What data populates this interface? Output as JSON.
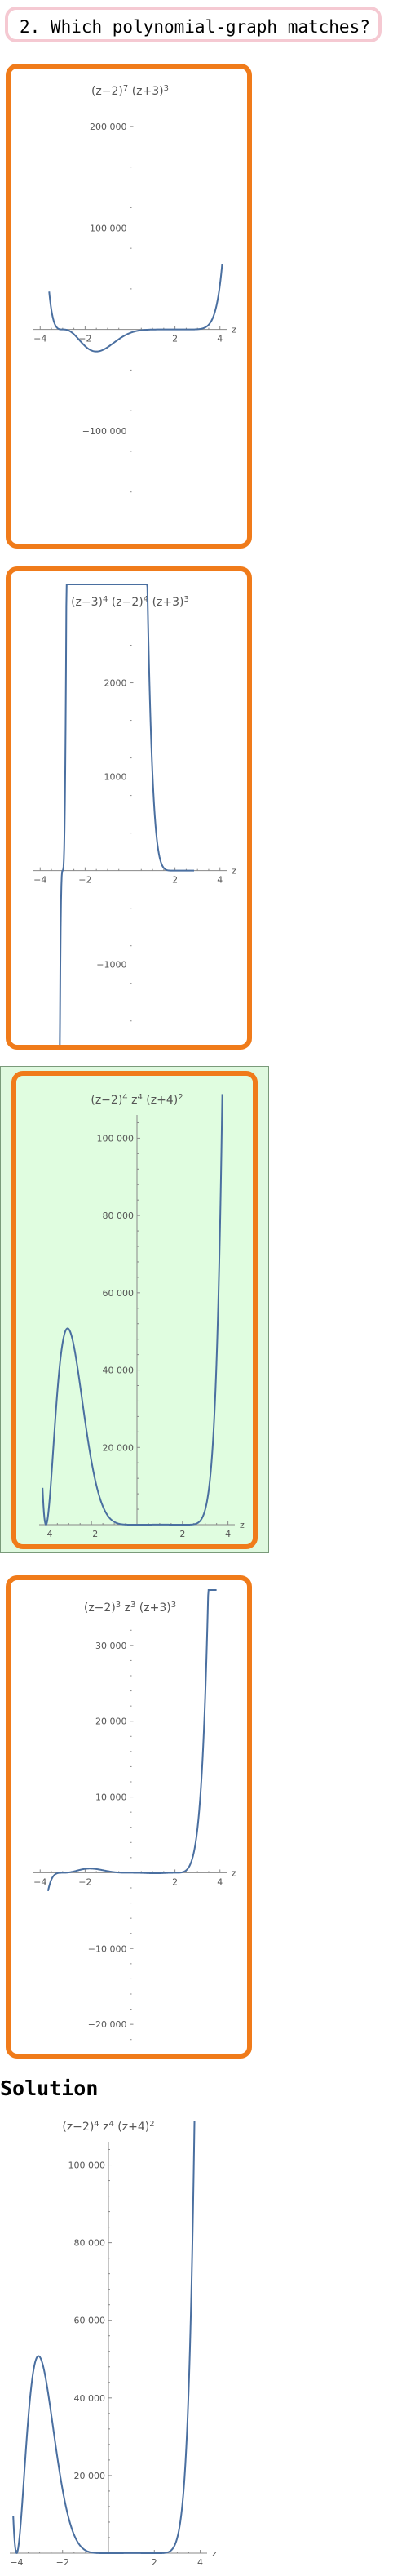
{
  "question": {
    "text": "2. Which polynomial-graph matches?"
  },
  "choices": [
    {
      "id": "a",
      "selected": false,
      "chart_data": {
        "type": "line",
        "title": "(z−2)^7 (z+3)^3",
        "xlabel": "z",
        "xlim": [
          -4.3,
          4.3
        ],
        "ylim": [
          -190000,
          220000
        ],
        "x_ticks": [
          -4,
          -2,
          2,
          4
        ],
        "y_ticks": [
          -100000,
          100000,
          200000
        ],
        "y_tick_labels": [
          "−100 000",
          "100 000",
          "200 000"
        ],
        "grid": false,
        "series": [
          {
            "expression": "(z-2)^7 (z+3)^3",
            "x_range": [
              -3.6,
              4.1
            ]
          }
        ]
      }
    },
    {
      "id": "b",
      "selected": false,
      "chart_data": {
        "type": "line",
        "title": "(z−3)^4 (z−2)^4 (z+3)^3",
        "xlabel": "z",
        "xlim": [
          -4.3,
          4.3
        ],
        "ylim": [
          -1750,
          2700
        ],
        "x_ticks": [
          -4,
          -2,
          2,
          4
        ],
        "y_ticks": [
          -1000,
          1000,
          2000
        ],
        "y_tick_labels": [
          "−1000",
          "1000",
          "2000"
        ],
        "grid": false,
        "series": [
          {
            "expression": "(z-3)^4 (z-2)^4 (z+3)^3",
            "x_range": [
              -3.45,
              2.85
            ]
          }
        ]
      }
    },
    {
      "id": "c",
      "selected": true,
      "chart_data": {
        "type": "line",
        "title": "(z−2)^4 z^4 (z+4)^2",
        "xlabel": "z",
        "xlim": [
          -4.3,
          4.3
        ],
        "ylim": [
          0,
          106000
        ],
        "x_ticks": [
          -4,
          -2,
          2,
          4
        ],
        "y_ticks": [
          20000,
          40000,
          60000,
          80000,
          100000
        ],
        "y_tick_labels": [
          "20 000",
          "40 000",
          "60 000",
          "80 000",
          "100 000"
        ],
        "grid": false,
        "series": [
          {
            "expression": "(z-2)^4 z^4 (z+4)^2",
            "x_range": [
              -4.15,
              3.75
            ]
          }
        ]
      }
    },
    {
      "id": "d",
      "selected": false,
      "chart_data": {
        "type": "line",
        "title": "(z−2)^3 z^3 (z+3)^3",
        "xlabel": "z",
        "xlim": [
          -4.3,
          4.3
        ],
        "ylim": [
          -23000,
          33000
        ],
        "x_ticks": [
          -4,
          -2,
          2,
          4
        ],
        "y_ticks": [
          -20000,
          -10000,
          10000,
          20000,
          30000
        ],
        "y_tick_labels": [
          "−20 000",
          "−10 000",
          "10 000",
          "20 000",
          "30 000"
        ],
        "grid": false,
        "series": [
          {
            "expression": "(z-2)^3 z^3 (z+3)^3",
            "x_range": [
              -3.65,
              3.85
            ]
          }
        ]
      }
    }
  ],
  "solution": {
    "title": "Solution",
    "chart_data": {
      "type": "line",
      "title": "(z−2)^4 z^4 (z+4)^2",
      "xlabel": "z",
      "xlim": [
        -4.3,
        4.3
      ],
      "ylim": [
        0,
        106000
      ],
      "x_ticks": [
        -4,
        -2,
        2,
        4
      ],
      "y_ticks": [
        20000,
        40000,
        60000,
        80000,
        100000
      ],
      "y_tick_labels": [
        "20 000",
        "40 000",
        "60 000",
        "80 000",
        "100 000"
      ],
      "grid": false,
      "series": [
        {
          "expression": "(z-2)^4 z^4 (z+4)^2",
          "x_range": [
            -4.15,
            3.75
          ]
        }
      ]
    }
  },
  "colors": {
    "choice_border": "#f07b1a",
    "selected_bg": "#e0fde0",
    "curve": "#4a6fa0",
    "question_border": "#f5c9d2"
  }
}
